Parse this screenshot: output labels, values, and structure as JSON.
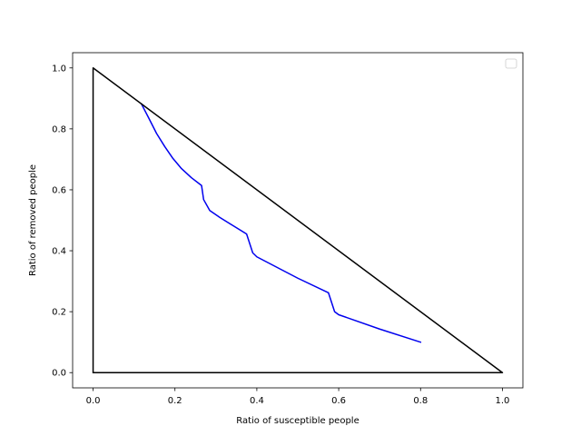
{
  "chart_data": {
    "type": "line",
    "title": "",
    "xlabel": "Ratio of susceptible people",
    "ylabel": "Ratio of removed people",
    "xlim": [
      -0.05,
      1.05
    ],
    "ylim": [
      -0.05,
      1.05
    ],
    "xticks": [
      {
        "value": 0.0,
        "label": "0.0"
      },
      {
        "value": 0.2,
        "label": "0.2"
      },
      {
        "value": 0.4,
        "label": "0.4"
      },
      {
        "value": 0.6,
        "label": "0.6"
      },
      {
        "value": 0.8,
        "label": "0.8"
      },
      {
        "value": 1.0,
        "label": "1.0"
      }
    ],
    "yticks": [
      {
        "value": 0.0,
        "label": "0.0"
      },
      {
        "value": 0.2,
        "label": "0.2"
      },
      {
        "value": 0.4,
        "label": "0.4"
      },
      {
        "value": 0.6,
        "label": "0.6"
      },
      {
        "value": 0.8,
        "label": "0.8"
      },
      {
        "value": 1.0,
        "label": "1.0"
      }
    ],
    "grid": false,
    "legend": {
      "placement": "top-right",
      "entries": []
    },
    "series": [
      {
        "color": "#0000ee",
        "x": [
          0.8,
          0.7,
          0.6,
          0.59,
          0.575,
          0.5,
          0.45,
          0.4,
          0.39,
          0.375,
          0.34,
          0.31,
          0.285,
          0.27,
          0.265,
          0.24,
          0.215,
          0.195,
          0.175,
          0.155,
          0.135,
          0.118
        ],
        "y": [
          0.1,
          0.143,
          0.19,
          0.2,
          0.262,
          0.31,
          0.345,
          0.38,
          0.393,
          0.455,
          0.484,
          0.509,
          0.532,
          0.568,
          0.614,
          0.64,
          0.671,
          0.703,
          0.742,
          0.785,
          0.838,
          0.882
        ]
      },
      {
        "color": "#000000",
        "x": [
          0.0,
          0.0,
          1.0,
          0.0
        ],
        "y": [
          0.0,
          1.0,
          0.0,
          0.0
        ]
      }
    ]
  }
}
